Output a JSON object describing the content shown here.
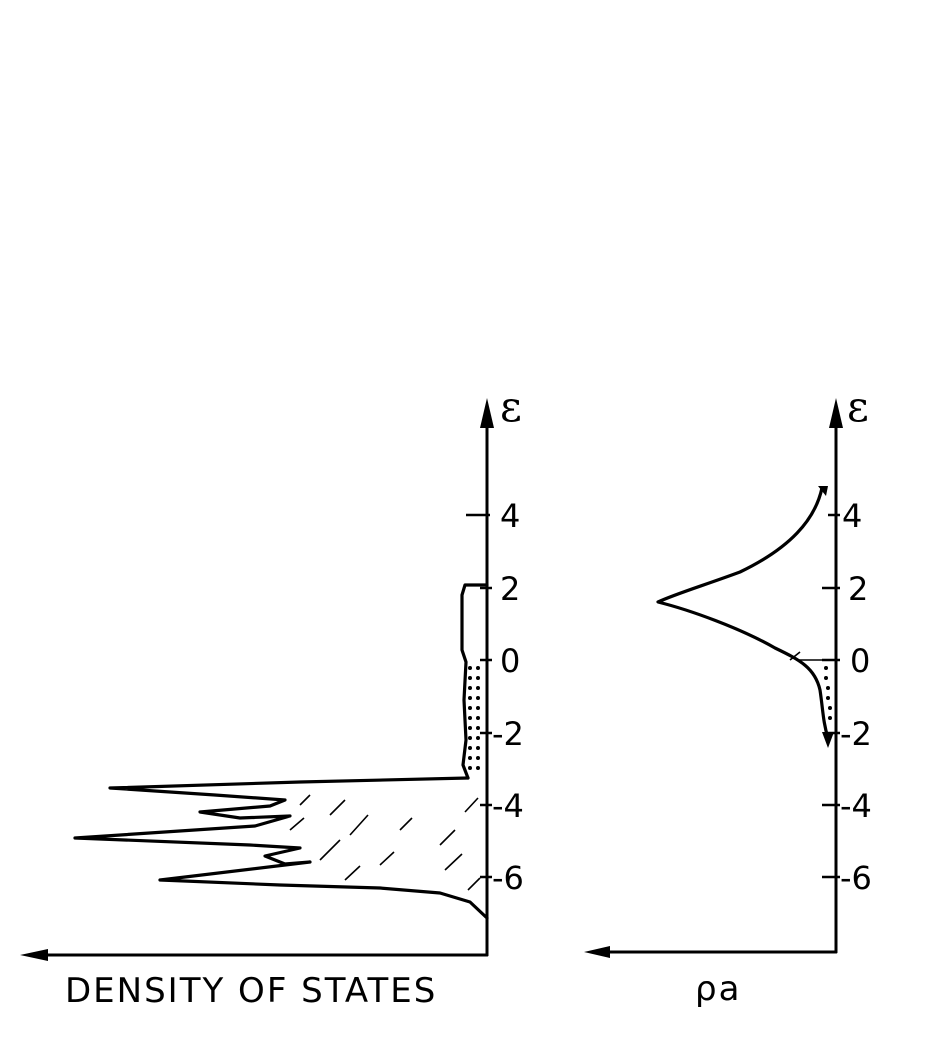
{
  "left_panel": {
    "axis_label": "ε",
    "x_label": "DENSITY OF STATES",
    "ticks": [
      "4",
      "2",
      "0",
      "-2",
      "-4",
      "-6"
    ]
  },
  "right_panel": {
    "axis_label": "ε",
    "x_label": "ρa",
    "ticks": [
      "4",
      "2",
      "0",
      "-2",
      "-4",
      "-6"
    ]
  }
}
